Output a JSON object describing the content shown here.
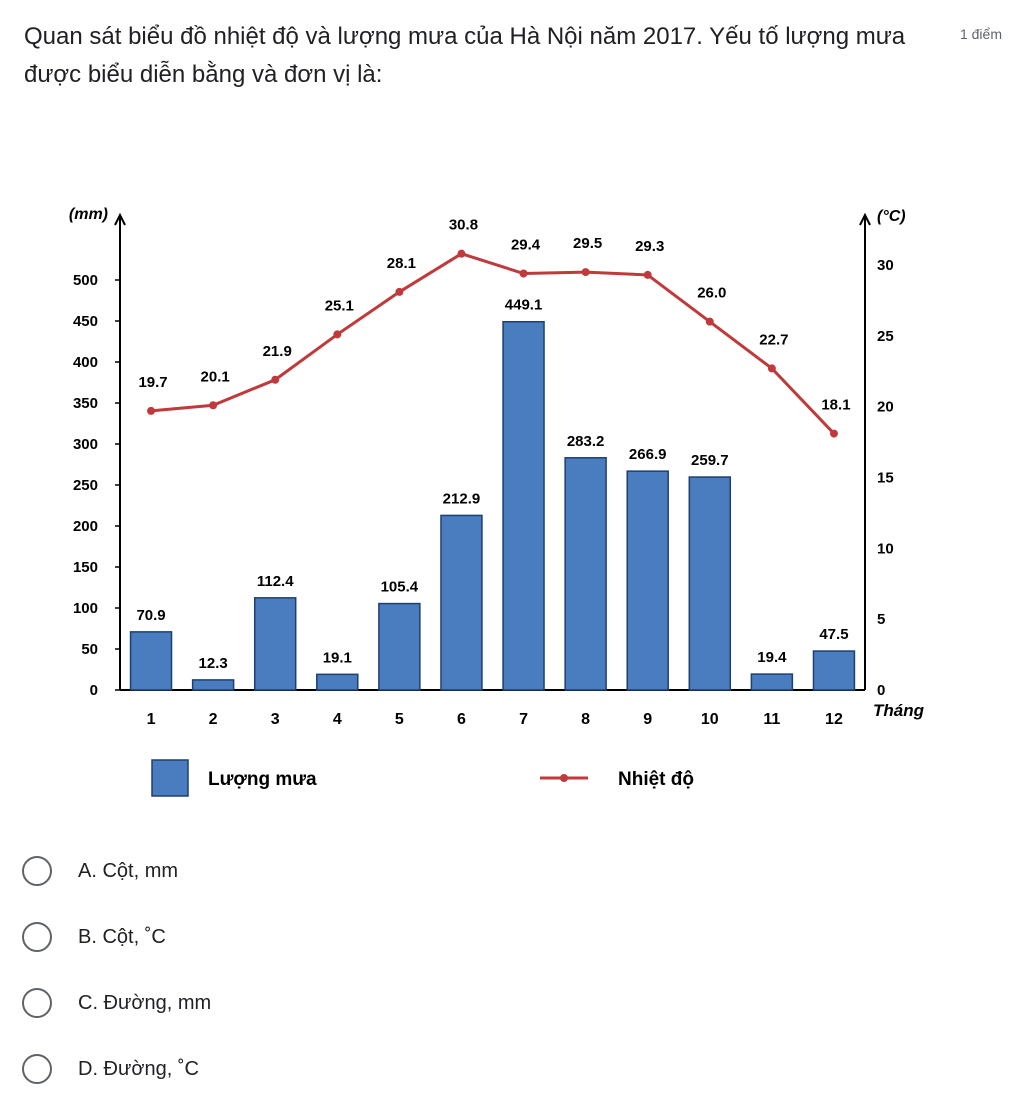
{
  "question": {
    "text": "Quan sát biểu đồ nhiệt độ và lượng mưa của Hà Nội năm 2017. Yếu tố lượng mưa được biểu diễn bằng và đơn vị là:",
    "points": "1 điểm"
  },
  "chart_data": {
    "type": "bar",
    "categories": [
      "1",
      "2",
      "3",
      "4",
      "5",
      "6",
      "7",
      "8",
      "9",
      "10",
      "11",
      "12"
    ],
    "series": [
      {
        "name": "Lượng mưa",
        "kind": "bar",
        "axis": "left",
        "values": [
          70.9,
          12.3,
          112.4,
          19.1,
          105.4,
          212.9,
          449.1,
          283.2,
          266.9,
          259.7,
          19.4,
          47.5
        ]
      },
      {
        "name": "Nhiệt độ",
        "kind": "line",
        "axis": "right",
        "values": [
          19.7,
          20.1,
          21.9,
          25.1,
          28.1,
          30.8,
          29.4,
          29.5,
          29.3,
          26.0,
          22.7,
          18.1
        ]
      }
    ],
    "left_axis": {
      "label": "(mm)",
      "ylim": [
        0,
        500
      ],
      "ticks": [
        "0",
        "50",
        "100",
        "150",
        "200",
        "250",
        "300",
        "350",
        "400",
        "450",
        "500"
      ]
    },
    "right_axis": {
      "label": "(°C)",
      "ylim": [
        0,
        30
      ],
      "ticks": [
        "0",
        "5",
        "10",
        "15",
        "20",
        "25",
        "30"
      ]
    },
    "xlabel": "Tháng",
    "bar_labels": [
      "70.9",
      "12.3",
      "112.4",
      "19.1",
      "105.4",
      "212.9",
      "449.1",
      "283.2",
      "266.9",
      "259.7",
      "19.4",
      "47.5"
    ],
    "line_labels": [
      "19.7",
      "20.1",
      "21.9",
      "25.1",
      "28.1",
      "30.8",
      "29.4",
      "29.5",
      "29.3",
      "26.0",
      "22.7",
      "18.1"
    ],
    "legend": {
      "placement": "bottom",
      "bar_label": "Lượng mưa",
      "line_label": "Nhiệt độ"
    },
    "colors": {
      "bar": "#4a7cc0",
      "bar_stroke": "#1f3f6e",
      "line": "#c0393b",
      "axis": "#000000"
    },
    "grid": false
  },
  "options": [
    {
      "label": "A. Cột, mm"
    },
    {
      "label": "B. Cột, ˚C"
    },
    {
      "label": "C. Đường, mm"
    },
    {
      "label": "D. Đường, ˚C"
    }
  ]
}
